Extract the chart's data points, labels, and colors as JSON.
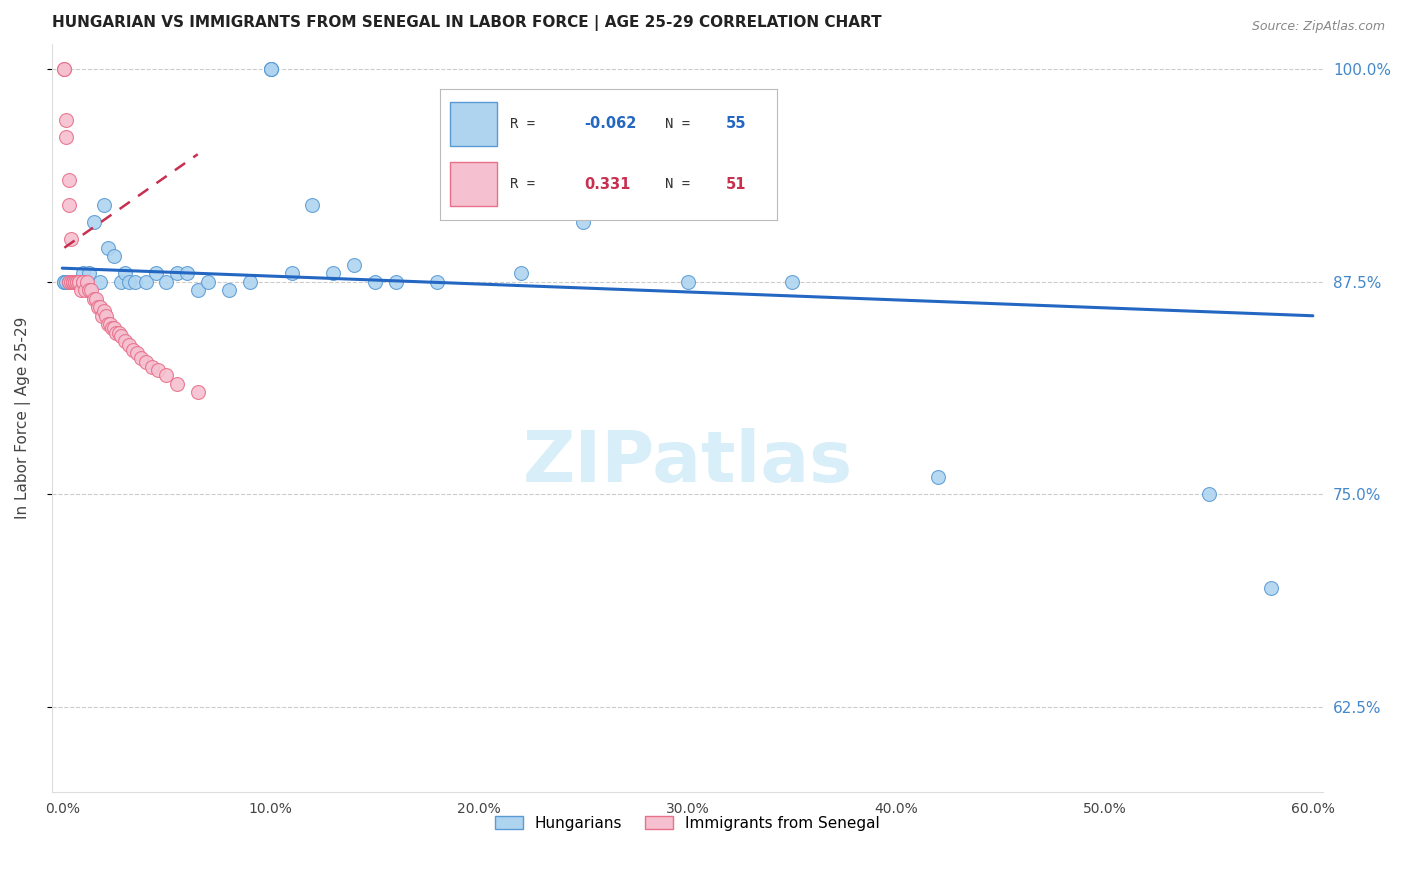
{
  "title": "HUNGARIAN VS IMMIGRANTS FROM SENEGAL IN LABOR FORCE | AGE 25-29 CORRELATION CHART",
  "source": "Source: ZipAtlas.com",
  "ylabel": "In Labor Force | Age 25-29",
  "xlim": [
    -0.005,
    0.605
  ],
  "ylim": [
    0.575,
    1.015
  ],
  "yticks": [
    0.625,
    0.75,
    0.875,
    1.0
  ],
  "ytick_labels": [
    "62.5%",
    "75.0%",
    "87.5%",
    "100.0%"
  ],
  "xticks": [
    0.0,
    0.1,
    0.2,
    0.3,
    0.4,
    0.5,
    0.6
  ],
  "xtick_labels": [
    "0.0%",
    "10.0%",
    "20.0%",
    "30.0%",
    "40.0%",
    "50.0%",
    "60.0%"
  ],
  "blue_color": "#aed4f0",
  "blue_edge_color": "#5b9bd5",
  "pink_color": "#f5c0d0",
  "pink_edge_color": "#e8708a",
  "trend_blue_color": "#2467c2",
  "trend_pink_color": "#c83050",
  "R_blue": -0.062,
  "N_blue": 55,
  "R_pink": 0.331,
  "N_pink": 51,
  "blue_x": [
    0.001,
    0.001,
    0.002,
    0.003,
    0.003,
    0.004,
    0.004,
    0.005,
    0.005,
    0.006,
    0.006,
    0.007,
    0.007,
    0.008,
    0.009,
    0.01,
    0.01,
    0.012,
    0.013,
    0.015,
    0.018,
    0.02,
    0.022,
    0.025,
    0.028,
    0.03,
    0.032,
    0.035,
    0.04,
    0.045,
    0.05,
    0.055,
    0.06,
    0.065,
    0.07,
    0.08,
    0.09,
    0.1,
    0.1,
    0.1,
    0.11,
    0.12,
    0.13,
    0.14,
    0.15,
    0.16,
    0.18,
    0.2,
    0.22,
    0.25,
    0.3,
    0.35,
    0.42,
    0.55,
    0.58
  ],
  "blue_y": [
    0.875,
    0.875,
    0.875,
    0.875,
    0.875,
    0.875,
    0.875,
    0.875,
    0.875,
    0.875,
    0.875,
    0.875,
    0.875,
    0.875,
    0.875,
    0.875,
    0.88,
    0.875,
    0.88,
    0.91,
    0.875,
    0.92,
    0.895,
    0.89,
    0.875,
    0.88,
    0.875,
    0.875,
    0.875,
    0.88,
    0.875,
    0.88,
    0.88,
    0.87,
    0.875,
    0.87,
    0.875,
    1.0,
    1.0,
    1.0,
    0.88,
    0.92,
    0.88,
    0.885,
    0.875,
    0.875,
    0.875,
    0.92,
    0.88,
    0.91,
    0.875,
    0.875,
    0.76,
    0.75,
    0.695
  ],
  "pink_x": [
    0.001,
    0.001,
    0.002,
    0.002,
    0.003,
    0.003,
    0.003,
    0.004,
    0.004,
    0.005,
    0.005,
    0.005,
    0.006,
    0.006,
    0.006,
    0.007,
    0.007,
    0.008,
    0.008,
    0.009,
    0.01,
    0.01,
    0.011,
    0.012,
    0.013,
    0.014,
    0.015,
    0.016,
    0.017,
    0.018,
    0.019,
    0.02,
    0.021,
    0.022,
    0.023,
    0.024,
    0.025,
    0.026,
    0.027,
    0.028,
    0.03,
    0.032,
    0.034,
    0.036,
    0.038,
    0.04,
    0.043,
    0.046,
    0.05,
    0.055,
    0.065
  ],
  "pink_y": [
    1.0,
    1.0,
    0.97,
    0.96,
    0.935,
    0.92,
    0.875,
    0.9,
    0.875,
    0.875,
    0.875,
    0.875,
    0.875,
    0.875,
    0.875,
    0.875,
    0.875,
    0.875,
    0.875,
    0.87,
    0.875,
    0.875,
    0.87,
    0.875,
    0.87,
    0.87,
    0.865,
    0.865,
    0.86,
    0.86,
    0.855,
    0.858,
    0.855,
    0.85,
    0.85,
    0.848,
    0.848,
    0.845,
    0.845,
    0.843,
    0.84,
    0.838,
    0.835,
    0.833,
    0.83,
    0.828,
    0.825,
    0.823,
    0.82,
    0.815,
    0.81
  ],
  "blue_trend_x": [
    0.0,
    0.6
  ],
  "blue_trend_y": [
    0.883,
    0.855
  ],
  "pink_trend_x": [
    0.001,
    0.065
  ],
  "pink_trend_y": [
    0.895,
    0.95
  ],
  "background_color": "#ffffff",
  "grid_color": "#cccccc",
  "title_color": "#222222",
  "axis_color": "#444444",
  "tick_color_right": "#4488cc",
  "watermark_text": "ZIPatlas",
  "watermark_color": "#d8eef8",
  "marker_size": 100
}
